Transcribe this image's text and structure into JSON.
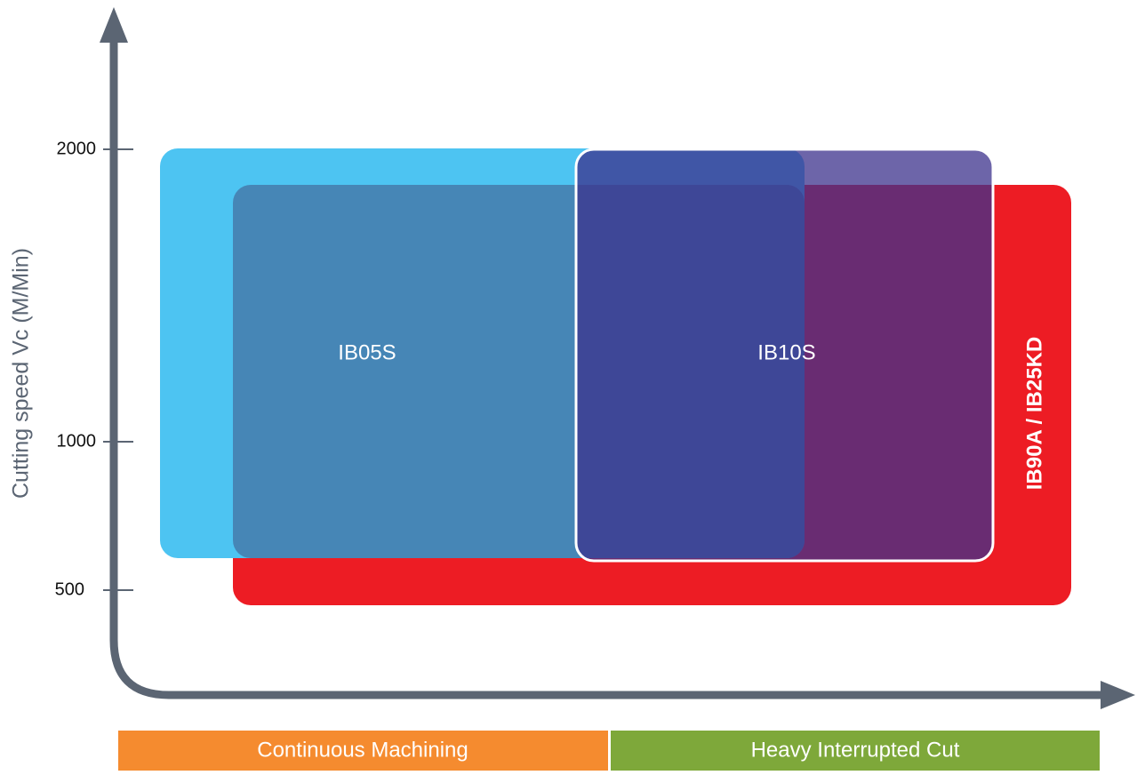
{
  "axis": {
    "title": "Cutting speed Vc (M/Min)",
    "ticks": [
      "2000",
      "1000",
      "500"
    ]
  },
  "regions": [
    {
      "label": "IB05S"
    },
    {
      "label": "IB10S"
    },
    {
      "label": "IB90A / IB25KD"
    }
  ],
  "categories": [
    "Continuous Machining",
    "Heavy Interrupted Cut"
  ]
}
